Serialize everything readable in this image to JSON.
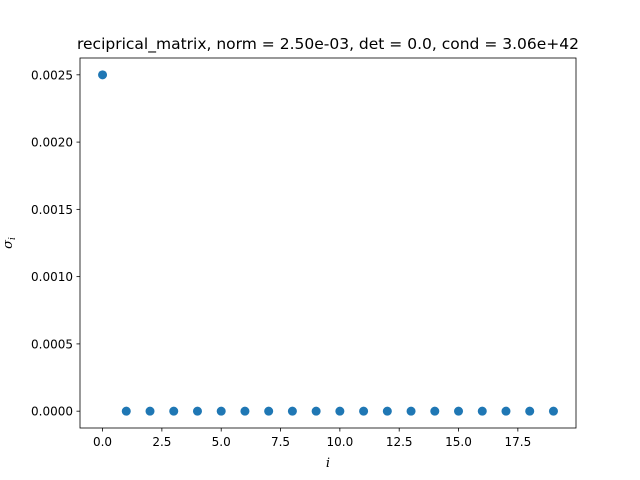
{
  "chart_data": {
    "type": "scatter",
    "title": "reciprical_matrix, norm = 2.50e-03, det = 0.0, cond = 3.06e+42",
    "xlabel": "i",
    "ylabel_main": "σ",
    "ylabel_sub": "i",
    "xlim": [
      -0.95,
      19.95
    ],
    "ylim": [
      -0.000125,
      0.002625
    ],
    "x_ticks": [
      0.0,
      2.5,
      5.0,
      7.5,
      10.0,
      12.5,
      15.0,
      17.5
    ],
    "x_tick_labels": [
      "0.0",
      "2.5",
      "5.0",
      "7.5",
      "10.0",
      "12.5",
      "15.0",
      "17.5"
    ],
    "y_ticks": [
      0.0,
      0.0005,
      0.001,
      0.0015,
      0.002,
      0.0025
    ],
    "y_tick_labels": [
      "0.0000",
      "0.0005",
      "0.0010",
      "0.0015",
      "0.0020",
      "0.0025"
    ],
    "x": [
      0,
      1,
      2,
      3,
      4,
      5,
      6,
      7,
      8,
      9,
      10,
      11,
      12,
      13,
      14,
      15,
      16,
      17,
      18,
      19
    ],
    "y": [
      0.0025,
      0,
      0,
      0,
      0,
      0,
      0,
      0,
      0,
      0,
      0,
      0,
      0,
      0,
      0,
      0,
      0,
      0,
      0,
      0
    ],
    "marker_color": "#1f77b4",
    "grid": false
  }
}
